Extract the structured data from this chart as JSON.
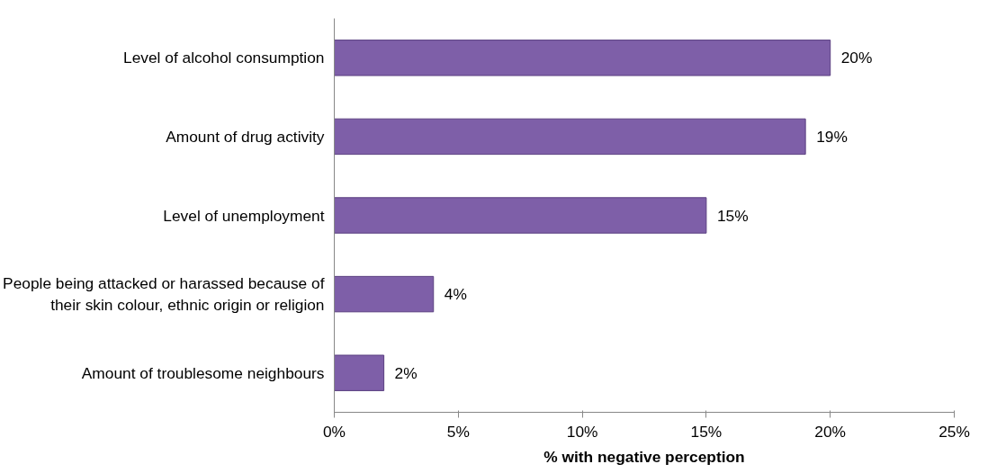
{
  "chart_data": {
    "type": "bar",
    "orientation": "horizontal",
    "xlabel": "% with negative perception",
    "categories": [
      "Level of alcohol consumption",
      "Amount of drug activity",
      "Level of unemployment",
      "People being attacked or harassed because of their skin colour, ethnic origin or religion",
      "Amount of troublesome neighbours"
    ],
    "values": [
      20,
      19,
      15,
      4,
      2
    ],
    "color": "#7e5fa8",
    "value_labels": [
      "20%",
      "19%",
      "15%",
      "4%",
      "2%"
    ],
    "xlim": [
      0,
      25
    ],
    "xticks": [
      {
        "value": 0,
        "label": "0%"
      },
      {
        "value": 5,
        "label": "5%"
      },
      {
        "value": 10,
        "label": "10%"
      },
      {
        "value": 15,
        "label": "15%"
      },
      {
        "value": 20,
        "label": "20%"
      },
      {
        "value": 25,
        "label": "25%"
      }
    ],
    "grid": false
  }
}
